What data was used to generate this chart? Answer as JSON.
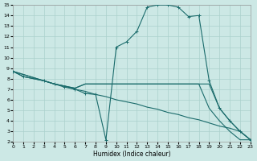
{
  "bg_color": "#cce8e5",
  "grid_color": "#aad0cc",
  "line_color": "#1a6b6b",
  "xlabel": "Humidex (Indice chaleur)",
  "xlim": [
    0,
    23
  ],
  "ylim": [
    2,
    15
  ],
  "xticks": [
    0,
    1,
    2,
    3,
    4,
    5,
    6,
    7,
    8,
    9,
    10,
    11,
    12,
    13,
    14,
    15,
    16,
    17,
    18,
    19,
    20,
    21,
    22,
    23
  ],
  "yticks": [
    2,
    3,
    4,
    5,
    6,
    7,
    8,
    9,
    10,
    11,
    12,
    13,
    14,
    15
  ],
  "curve1": {
    "x": [
      0,
      1,
      3,
      4,
      5,
      6,
      7,
      8,
      9,
      10,
      11,
      12,
      13,
      14,
      15,
      16,
      17,
      18,
      19,
      20,
      21,
      22,
      23
    ],
    "y": [
      8.7,
      8.2,
      7.8,
      7.5,
      7.2,
      7.0,
      6.6,
      6.5,
      2.2,
      11.0,
      11.5,
      12.5,
      14.8,
      15.0,
      15.0,
      14.8,
      13.9,
      14.0,
      7.8,
      5.2,
      4.0,
      3.0,
      2.2
    ]
  },
  "curve2": {
    "x": [
      0,
      1,
      3,
      4,
      5,
      6,
      7,
      8,
      9,
      10,
      11,
      12,
      13,
      14,
      15,
      16,
      17,
      18,
      19,
      20,
      21,
      22,
      23
    ],
    "y": [
      8.7,
      8.2,
      7.8,
      7.5,
      7.3,
      7.0,
      6.8,
      6.5,
      6.3,
      6.0,
      5.8,
      5.6,
      5.3,
      5.1,
      4.8,
      4.6,
      4.3,
      4.1,
      3.8,
      3.5,
      3.3,
      3.0,
      2.2
    ]
  },
  "curve3": {
    "x": [
      0,
      3,
      4,
      5,
      6,
      7,
      10,
      11,
      12,
      13,
      14,
      15,
      16,
      17,
      18,
      19,
      20,
      21,
      22,
      23
    ],
    "y": [
      8.7,
      7.8,
      7.5,
      7.3,
      7.1,
      7.5,
      7.5,
      7.5,
      7.5,
      7.5,
      7.5,
      7.5,
      7.5,
      7.5,
      7.5,
      5.2,
      4.0,
      3.0,
      2.2,
      2.2
    ]
  },
  "curve4": {
    "x": [
      0,
      3,
      4,
      5,
      6,
      7,
      10,
      19,
      20,
      21,
      22,
      23
    ],
    "y": [
      8.7,
      7.8,
      7.5,
      7.3,
      7.1,
      7.5,
      7.5,
      7.5,
      5.2,
      4.0,
      3.0,
      2.2
    ]
  }
}
